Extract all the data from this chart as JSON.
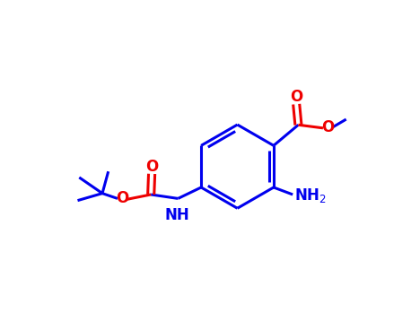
{
  "bg_color": "#ffffff",
  "blue": "#0000ee",
  "red": "#ee0000",
  "lw": 2.2,
  "figsize": [
    4.58,
    3.58
  ],
  "dpi": 100,
  "xlim": [
    0,
    10
  ],
  "ylim": [
    0,
    8
  ]
}
